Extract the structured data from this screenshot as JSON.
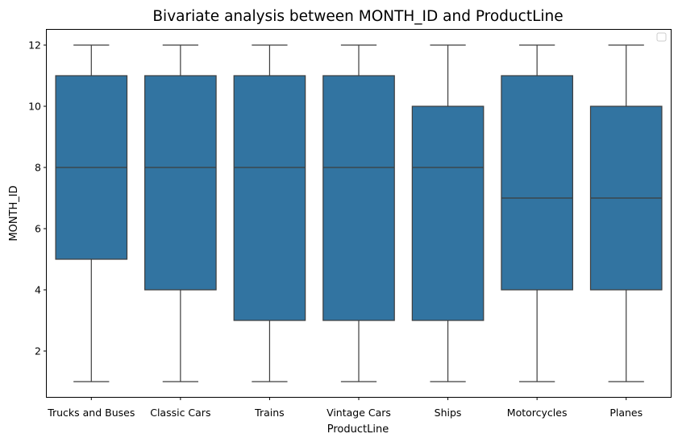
{
  "chart_data": {
    "type": "box",
    "title": "Bivariate analysis between MONTH_ID and ProductLine",
    "xlabel": "ProductLine",
    "ylabel": "MONTH_ID",
    "ylim": [
      0.5,
      12.5
    ],
    "yticks": [
      "2",
      "4",
      "6",
      "8",
      "10",
      "12"
    ],
    "grid": false,
    "legend": "top-right (empty)",
    "box_color": "#3274a1",
    "line_color": "#3d3d3d",
    "categories": [
      "Trucks and Buses",
      "Classic Cars",
      "Trains",
      "Vintage Cars",
      "Ships",
      "Motorcycles",
      "Planes"
    ],
    "boxes": [
      {
        "category": "Trucks and Buses",
        "min": 1,
        "q1": 5,
        "median": 8,
        "q3": 11,
        "max": 12
      },
      {
        "category": "Classic Cars",
        "min": 1,
        "q1": 4,
        "median": 8,
        "q3": 11,
        "max": 12
      },
      {
        "category": "Trains",
        "min": 1,
        "q1": 3,
        "median": 8,
        "q3": 11,
        "max": 12
      },
      {
        "category": "Vintage Cars",
        "min": 1,
        "q1": 3,
        "median": 8,
        "q3": 11,
        "max": 12
      },
      {
        "category": "Ships",
        "min": 1,
        "q1": 3,
        "median": 8,
        "q3": 10,
        "max": 12
      },
      {
        "category": "Motorcycles",
        "min": 1,
        "q1": 4,
        "median": 7,
        "q3": 11,
        "max": 12
      },
      {
        "category": "Planes",
        "min": 1,
        "q1": 4,
        "median": 7,
        "q3": 10,
        "max": 12
      }
    ]
  }
}
